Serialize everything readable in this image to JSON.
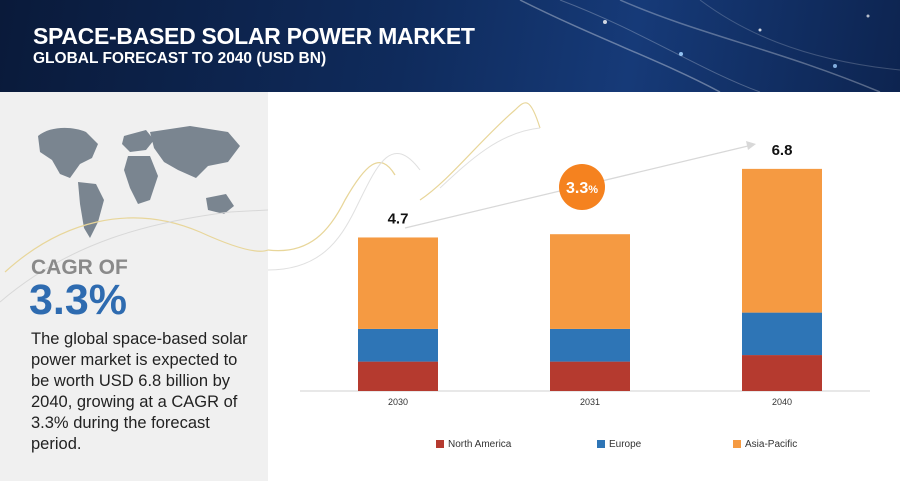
{
  "header": {
    "title": "SPACE-BASED SOLAR POWER MARKET",
    "subtitle": "GLOBAL FORECAST TO 2040 (USD BN)"
  },
  "summary": {
    "cagr_label": "CAGR OF",
    "cagr_value": "3.3%",
    "description": "The global space-based solar power market is expected to be worth USD 6.8 billion by 2040, growing at a CAGR of 3.3% during the forecast period."
  },
  "colors": {
    "north_america": "#b53a2f",
    "europe": "#2e75b6",
    "asia_pacific": "#f59a42",
    "cagr_bubble": "#f5821f"
  },
  "chart_data": {
    "type": "bar",
    "stacked": true,
    "categories": [
      "2030",
      "2031",
      "2040"
    ],
    "series": [
      {
        "name": "North America",
        "values": [
          0.9,
          0.9,
          1.1
        ]
      },
      {
        "name": "Europe",
        "values": [
          1.0,
          1.0,
          1.3
        ]
      },
      {
        "name": "Asia-Pacific",
        "values": [
          2.8,
          2.9,
          4.4
        ]
      }
    ],
    "totals": [
      "4.7",
      "",
      "6.8"
    ],
    "cagr_badge": {
      "value": "3.3",
      "suffix": "%"
    },
    "legend": [
      "North America",
      "Europe",
      "Asia-Pacific"
    ],
    "legend_position": "bottom",
    "ylim": [
      0,
      7.5
    ],
    "title": "",
    "xlabel": "",
    "ylabel": ""
  }
}
